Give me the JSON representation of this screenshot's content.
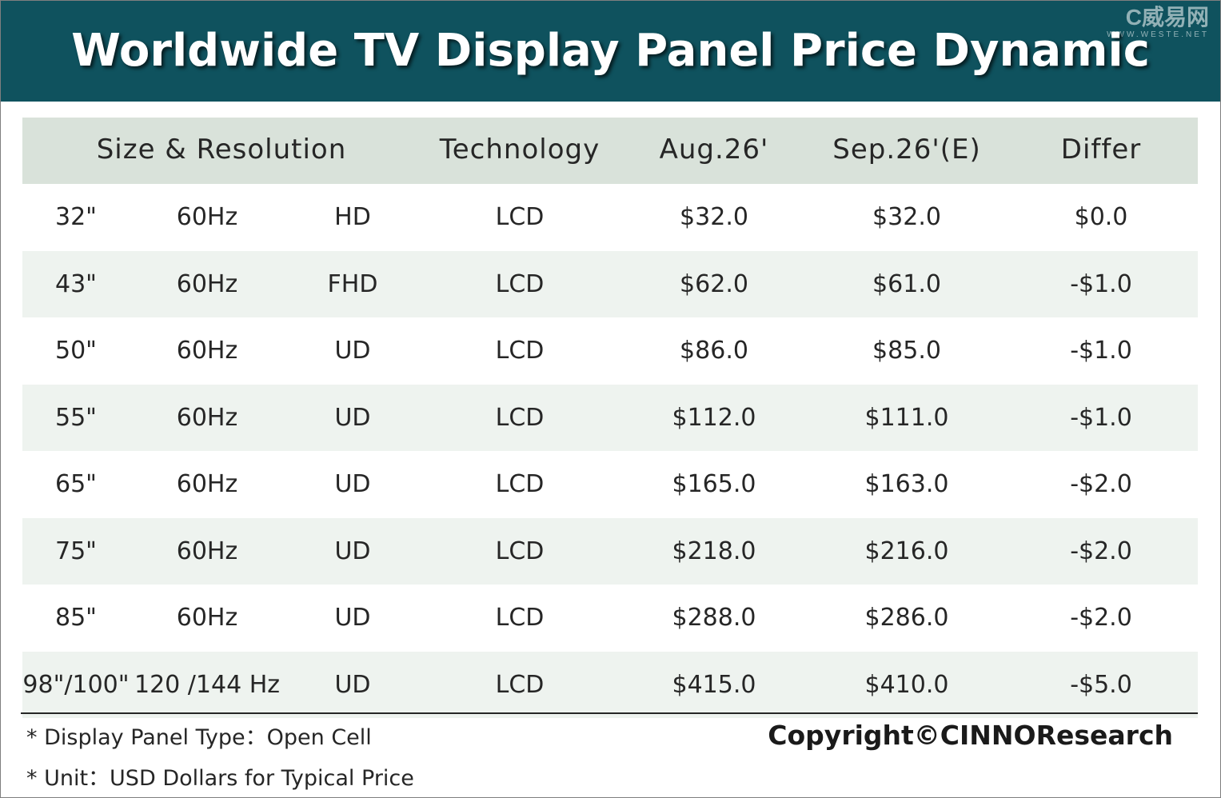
{
  "title": "Worldwide TV Display Panel Price Dynamic",
  "watermark": {
    "logo": "C威易网",
    "url": "WWW.WESTE.NET"
  },
  "table": {
    "headers": {
      "size_resolution": "Size & Resolution",
      "technology": "Technology",
      "aug": "Aug.26'",
      "sep": "Sep.26'(E)",
      "differ": "Differ"
    },
    "rows": [
      {
        "size": "32\"",
        "hz": "60Hz",
        "res": "HD",
        "tech": "LCD",
        "aug": "$32.0",
        "sep": "$32.0",
        "differ": "$0.0"
      },
      {
        "size": "43\"",
        "hz": "60Hz",
        "res": "FHD",
        "tech": "LCD",
        "aug": "$62.0",
        "sep": "$61.0",
        "differ": "-$1.0"
      },
      {
        "size": "50\"",
        "hz": "60Hz",
        "res": "UD",
        "tech": "LCD",
        "aug": "$86.0",
        "sep": "$85.0",
        "differ": "-$1.0"
      },
      {
        "size": "55\"",
        "hz": "60Hz",
        "res": "UD",
        "tech": "LCD",
        "aug": "$112.0",
        "sep": "$111.0",
        "differ": "-$1.0"
      },
      {
        "size": "65\"",
        "hz": "60Hz",
        "res": "UD",
        "tech": "LCD",
        "aug": "$165.0",
        "sep": "$163.0",
        "differ": "-$2.0"
      },
      {
        "size": "75\"",
        "hz": "60Hz",
        "res": "UD",
        "tech": "LCD",
        "aug": "$218.0",
        "sep": "$216.0",
        "differ": "-$2.0"
      },
      {
        "size": "85\"",
        "hz": "60Hz",
        "res": "UD",
        "tech": "LCD",
        "aug": "$288.0",
        "sep": "$286.0",
        "differ": "-$2.0"
      },
      {
        "size": "98\"/100\"",
        "hz": "120 /144 Hz",
        "res": "UD",
        "tech": "LCD",
        "aug": "$415.0",
        "sep": "$410.0",
        "differ": "-$5.0"
      }
    ]
  },
  "notes": [
    "* Display Panel Type：Open Cell",
    "* Unit：USD Dollars for Typical Price"
  ],
  "copyright": "Copyright©CINNOResearch",
  "colors": {
    "banner": "#0f525e",
    "header_row": "#d9e2da",
    "shaded_row": "#eef3ef"
  }
}
